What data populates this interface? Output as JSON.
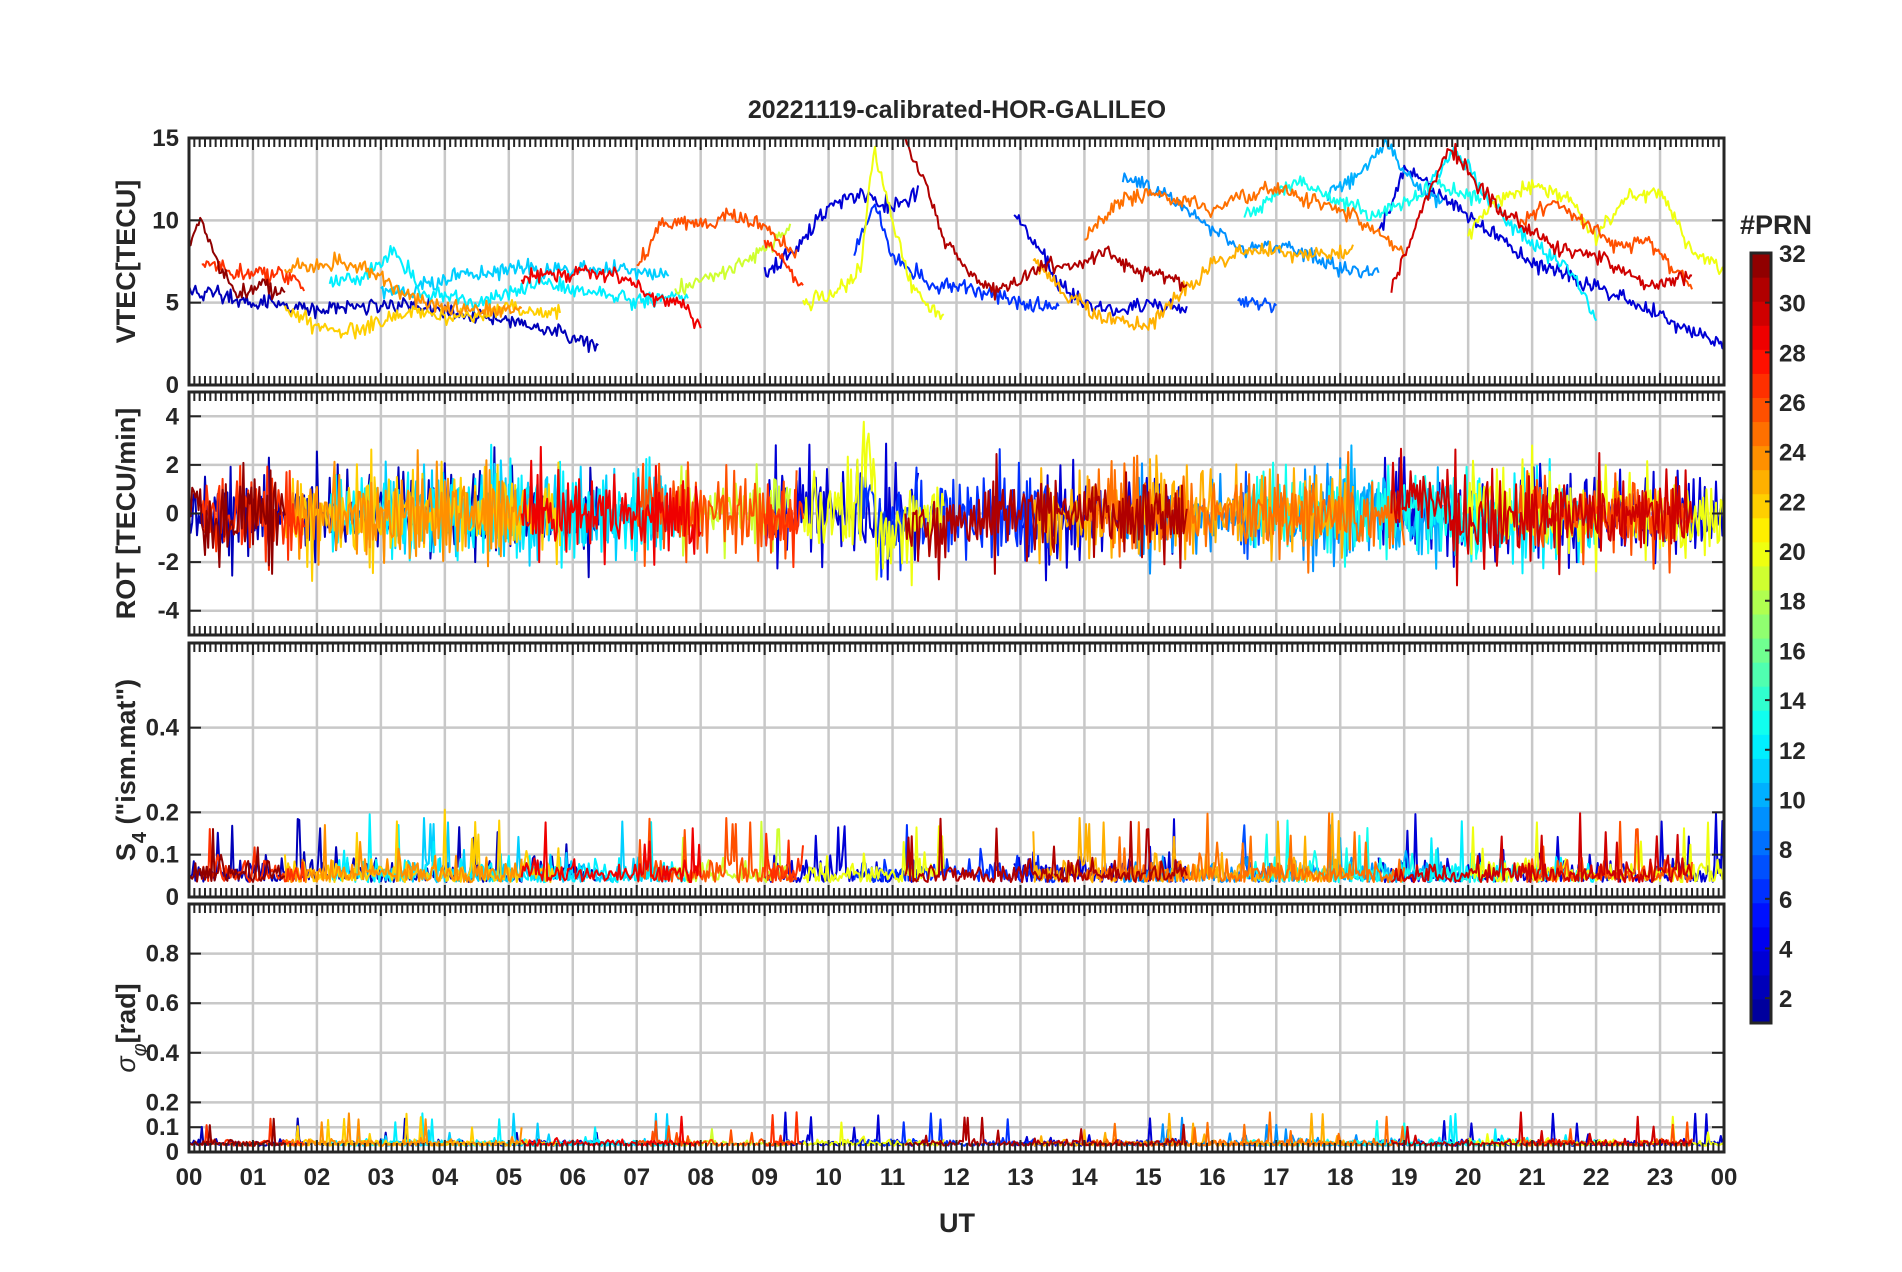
{
  "colors": {
    "axis": "#262626",
    "grid": "#c8c8c8",
    "colormap": [
      "#00008f",
      "#0000ff",
      "#0080ff",
      "#00ffff",
      "#80ff80",
      "#ffff00",
      "#ff8000",
      "#ff0000",
      "#800000"
    ]
  },
  "chart_data": {
    "type": "line",
    "title": "20221119-calibrated-HOR-GALILEO",
    "xlabel": "UT",
    "x_ticks": [
      "00",
      "01",
      "02",
      "03",
      "04",
      "05",
      "06",
      "07",
      "08",
      "09",
      "10",
      "11",
      "12",
      "13",
      "14",
      "15",
      "16",
      "17",
      "18",
      "19",
      "20",
      "21",
      "22",
      "23",
      "00"
    ],
    "xlim_hours": [
      0,
      24
    ],
    "grid": true,
    "colorbar": {
      "title": "#PRN",
      "ticks": [
        "2",
        "4",
        "6",
        "8",
        "10",
        "12",
        "14",
        "16",
        "18",
        "20",
        "22",
        "24",
        "26",
        "28",
        "30",
        "32"
      ],
      "range": [
        1,
        32
      ],
      "placement": "right"
    },
    "panels": [
      {
        "key": "vtec",
        "ylabel": "VTEC[TECU]",
        "ylim": [
          0,
          15
        ],
        "yticks": [
          "0",
          "5",
          "10",
          "15"
        ]
      },
      {
        "key": "rot",
        "ylabel": "ROT [TECU/min]",
        "ylim": [
          -5,
          5
        ],
        "yticks": [
          "-4",
          "-2",
          "0",
          "2",
          "4"
        ]
      },
      {
        "key": "s4",
        "ylabel_main": "S",
        "ylabel_sub": "4",
        "ylabel_rest": " (\"ism.mat\")",
        "ylim": [
          0,
          0.6
        ],
        "yticks": [
          "0",
          "0.1",
          "0.2",
          "0.4"
        ]
      },
      {
        "key": "sigma",
        "ylabel_main": "σ",
        "ylabel_sub": "φ",
        "ylabel_rest": "[rad]",
        "ylim": [
          0,
          1
        ],
        "yticks": [
          "0",
          "0.1",
          "0.2",
          "0.4",
          "0.6",
          "0.8"
        ]
      }
    ],
    "series": [
      {
        "prn": 2,
        "start": 0.0,
        "end": 6.4,
        "vtec": [
          [
            0,
            5.8
          ],
          [
            0.5,
            5.5
          ],
          [
            1,
            5.0
          ],
          [
            2,
            4.6
          ],
          [
            3,
            4.9
          ],
          [
            4,
            4.5
          ],
          [
            5,
            3.9
          ],
          [
            6,
            2.8
          ],
          [
            6.4,
            2.5
          ]
        ]
      },
      {
        "prn": 3,
        "start": 9.0,
        "end": 11.4,
        "vtec": [
          [
            9,
            6.8
          ],
          [
            9.5,
            8.3
          ],
          [
            10,
            10.8
          ],
          [
            10.5,
            11.6
          ],
          [
            11,
            10.7
          ],
          [
            11.4,
            11.6
          ]
        ]
      },
      {
        "prn": 3,
        "start": 12.9,
        "end": 15.6,
        "vtec": [
          [
            12.9,
            10.2
          ],
          [
            13.3,
            8.4
          ],
          [
            13.6,
            6.1
          ],
          [
            14,
            4.9
          ],
          [
            14.5,
            4.5
          ],
          [
            15,
            4.9
          ],
          [
            15.6,
            4.6
          ]
        ]
      },
      {
        "prn": 3,
        "start": 18.6,
        "end": 24.0,
        "vtec": [
          [
            18.6,
            9.2
          ],
          [
            19,
            13.2
          ],
          [
            19.5,
            11.8
          ],
          [
            20,
            10.2
          ],
          [
            21,
            7.5
          ],
          [
            22,
            6.0
          ],
          [
            23,
            4.2
          ],
          [
            24,
            2.4
          ]
        ]
      },
      {
        "prn": 6,
        "start": 10.4,
        "end": 13.6,
        "vtec": [
          [
            10.4,
            8.0
          ],
          [
            10.7,
            11.0
          ],
          [
            11,
            7.8
          ],
          [
            11.5,
            6.3
          ],
          [
            12,
            6.0
          ],
          [
            12.5,
            5.7
          ],
          [
            13,
            5.0
          ],
          [
            13.6,
            4.7
          ]
        ]
      },
      {
        "prn": 7,
        "start": 16.4,
        "end": 17.0,
        "vtec": [
          [
            16.4,
            5.2
          ],
          [
            17,
            4.8
          ]
        ]
      },
      {
        "prn": 9,
        "start": 14.6,
        "end": 18.6,
        "vtec": [
          [
            14.6,
            12.5
          ],
          [
            15,
            12.0
          ],
          [
            15.5,
            11.0
          ],
          [
            16,
            9.5
          ],
          [
            16.5,
            8.2
          ],
          [
            17,
            8.5
          ],
          [
            17.5,
            8.0
          ],
          [
            18,
            7.0
          ],
          [
            18.6,
            6.8
          ]
        ]
      },
      {
        "prn": 10,
        "start": 17.8,
        "end": 19.6,
        "vtec": [
          [
            17.8,
            11.5
          ],
          [
            18.3,
            13.0
          ],
          [
            18.7,
            14.5
          ],
          [
            19.2,
            12.2
          ],
          [
            19.6,
            11.0
          ]
        ]
      },
      {
        "prn": 11,
        "start": 3.0,
        "end": 7.5,
        "vtec": [
          [
            3,
            5.6
          ],
          [
            3.5,
            5.8
          ],
          [
            4,
            6.5
          ],
          [
            5,
            7.1
          ],
          [
            6,
            7.0
          ],
          [
            7,
            7.0
          ],
          [
            7.5,
            6.6
          ]
        ]
      },
      {
        "prn": 12,
        "start": 2.2,
        "end": 7.8,
        "vtec": [
          [
            2.2,
            6.2
          ],
          [
            2.8,
            6.6
          ],
          [
            3.2,
            8.2
          ],
          [
            3.6,
            5.8
          ],
          [
            4.5,
            5.0
          ],
          [
            5.5,
            6.3
          ],
          [
            6.3,
            5.7
          ],
          [
            7,
            5.1
          ],
          [
            7.8,
            5.5
          ]
        ]
      },
      {
        "prn": 12,
        "start": 19.4,
        "end": 22.0,
        "vtec": [
          [
            19.4,
            12.2
          ],
          [
            19.8,
            14.3
          ],
          [
            20.2,
            11.8
          ],
          [
            20.6,
            10.0
          ],
          [
            21.2,
            8.0
          ],
          [
            21.6,
            7.0
          ],
          [
            22,
            4.0
          ]
        ]
      },
      {
        "prn": 13,
        "start": 16.5,
        "end": 20.2,
        "vtec": [
          [
            16.5,
            10.2
          ],
          [
            17,
            11.8
          ],
          [
            17.5,
            12.2
          ],
          [
            18,
            11.2
          ],
          [
            18.5,
            10.3
          ],
          [
            19,
            11.0
          ],
          [
            19.5,
            12.2
          ],
          [
            20.2,
            11.4
          ]
        ]
      },
      {
        "prn": 19,
        "start": 7.6,
        "end": 9.4,
        "vtec": [
          [
            7.6,
            5.6
          ],
          [
            8,
            6.3
          ],
          [
            8.6,
            7.3
          ],
          [
            9.4,
            9.4
          ]
        ]
      },
      {
        "prn": 20,
        "start": 9.6,
        "end": 11.8,
        "vtec": [
          [
            9.6,
            5.0
          ],
          [
            10,
            5.3
          ],
          [
            10.5,
            7.0
          ],
          [
            10.7,
            14.4
          ],
          [
            11,
            10.0
          ],
          [
            11.3,
            6.0
          ],
          [
            11.8,
            4.0
          ]
        ]
      },
      {
        "prn": 20,
        "start": 20.0,
        "end": 24.0,
        "vtec": [
          [
            20,
            9.2
          ],
          [
            20.5,
            11.4
          ],
          [
            21,
            12.0
          ],
          [
            21.5,
            11.6
          ],
          [
            22,
            9.0
          ],
          [
            22.5,
            11.5
          ],
          [
            23,
            11.8
          ],
          [
            23.5,
            8.2
          ],
          [
            24,
            7.0
          ]
        ]
      },
      {
        "prn": 22,
        "start": 1.5,
        "end": 5.8,
        "vtec": [
          [
            1.5,
            4.9
          ],
          [
            2,
            3.6
          ],
          [
            2.5,
            3.3
          ],
          [
            3,
            3.8
          ],
          [
            3.5,
            4.6
          ],
          [
            4,
            4.0
          ],
          [
            5,
            4.6
          ],
          [
            5.8,
            4.5
          ]
        ]
      },
      {
        "prn": 23,
        "start": 13.2,
        "end": 18.2,
        "vtec": [
          [
            13.2,
            7.5
          ],
          [
            13.8,
            5.3
          ],
          [
            14.4,
            3.9
          ],
          [
            15,
            3.7
          ],
          [
            15.5,
            5.5
          ],
          [
            16,
            7.4
          ],
          [
            16.6,
            8.2
          ],
          [
            17.3,
            8.0
          ],
          [
            18.2,
            7.9
          ]
        ]
      },
      {
        "prn": 24,
        "start": 1.5,
        "end": 5.2,
        "vtec": [
          [
            1.5,
            7.0
          ],
          [
            2,
            7.2
          ],
          [
            2.6,
            7.5
          ],
          [
            3.2,
            6.0
          ],
          [
            3.7,
            5.0
          ],
          [
            4.3,
            4.6
          ],
          [
            5.2,
            4.7
          ]
        ]
      },
      {
        "prn": 25,
        "start": 14.0,
        "end": 19.0,
        "vtec": [
          [
            14,
            9.0
          ],
          [
            14.5,
            11.0
          ],
          [
            15,
            11.7
          ],
          [
            15.5,
            11.2
          ],
          [
            16,
            10.6
          ],
          [
            16.5,
            11.5
          ],
          [
            17,
            12.0
          ],
          [
            17.6,
            11.2
          ],
          [
            18.2,
            10.2
          ],
          [
            19,
            8.0
          ]
        ]
      },
      {
        "prn": 26,
        "start": 7.0,
        "end": 9.5,
        "vtec": [
          [
            7,
            7.3
          ],
          [
            7.4,
            9.8
          ],
          [
            8,
            9.8
          ],
          [
            8.6,
            10.4
          ],
          [
            9.2,
            9.0
          ],
          [
            9.5,
            8.0
          ]
        ]
      },
      {
        "prn": 26,
        "start": 20.8,
        "end": 23.5,
        "vtec": [
          [
            20.8,
            9.8
          ],
          [
            21.3,
            11.0
          ],
          [
            21.8,
            10.0
          ],
          [
            22.3,
            8.5
          ],
          [
            22.8,
            8.7
          ],
          [
            23.5,
            6.0
          ]
        ]
      },
      {
        "prn": 27,
        "start": 0.2,
        "end": 1.8,
        "vtec": [
          [
            0.2,
            7.6
          ],
          [
            0.5,
            7.1
          ],
          [
            1,
            6.7
          ],
          [
            1.4,
            6.6
          ],
          [
            1.8,
            6.0
          ]
        ]
      },
      {
        "prn": 27,
        "start": 9.0,
        "end": 9.6,
        "vtec": [
          [
            9,
            8.5
          ],
          [
            9.3,
            7.3
          ],
          [
            9.6,
            6.0
          ]
        ]
      },
      {
        "prn": 29,
        "start": 5.2,
        "end": 8.0,
        "vtec": [
          [
            5.2,
            6.5
          ],
          [
            5.8,
            6.7
          ],
          [
            6.3,
            6.9
          ],
          [
            6.8,
            6.5
          ],
          [
            7.3,
            5.3
          ],
          [
            7.7,
            5.0
          ],
          [
            8,
            3.6
          ]
        ]
      },
      {
        "prn": 30,
        "start": 18.8,
        "end": 23.5,
        "vtec": [
          [
            18.8,
            5.8
          ],
          [
            19.2,
            10.0
          ],
          [
            19.7,
            14.5
          ],
          [
            20.2,
            11.8
          ],
          [
            20.8,
            9.8
          ],
          [
            21.5,
            8.2
          ],
          [
            22,
            7.8
          ],
          [
            22.8,
            6.0
          ],
          [
            23.5,
            6.6
          ]
        ]
      },
      {
        "prn": 31,
        "start": 11.2,
        "end": 15.6,
        "vtec": [
          [
            11.2,
            14.8
          ],
          [
            11.5,
            12.4
          ],
          [
            11.8,
            9.0
          ],
          [
            12.2,
            6.8
          ],
          [
            12.6,
            5.7
          ],
          [
            13,
            6.4
          ],
          [
            13.4,
            7.3
          ],
          [
            13.8,
            7.0
          ],
          [
            14.3,
            8.2
          ],
          [
            14.8,
            7.0
          ],
          [
            15.6,
            6.2
          ]
        ]
      },
      {
        "prn": 32,
        "start": 0.0,
        "end": 1.5,
        "vtec": [
          [
            0,
            8.5
          ],
          [
            0.2,
            10.2
          ],
          [
            0.5,
            6.8
          ],
          [
            0.8,
            5.6
          ],
          [
            1.2,
            6.0
          ],
          [
            1.5,
            5.2
          ]
        ]
      }
    ]
  }
}
